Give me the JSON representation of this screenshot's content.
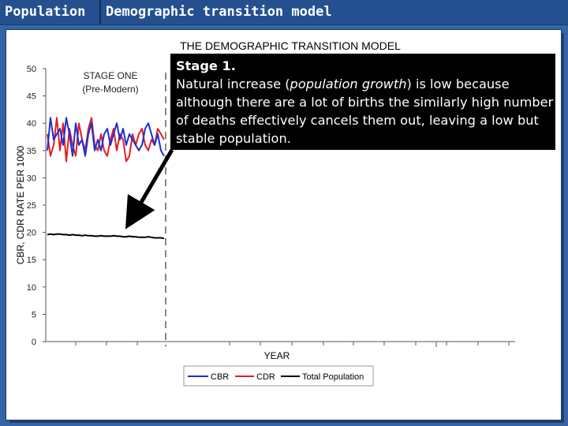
{
  "header": {
    "tab_label": "Population",
    "title": "Demographic transition model"
  },
  "colors": {
    "header_bg": "#25508f",
    "slide_bg": "#3465a4",
    "cbr": "#1c2fd6",
    "cdr": "#e02020",
    "total_population": "#000000"
  },
  "chart_data": {
    "type": "line",
    "title": "THE DEMOGRAPHIC TRANSITION MODEL",
    "xlabel": "YEAR",
    "ylabel": "CBR, CDR RATE PER 1000",
    "ylim": [
      0,
      50
    ],
    "yticks": [
      "0",
      "5",
      "10",
      "15",
      "20",
      "25",
      "30",
      "35",
      "40",
      "45",
      "50"
    ],
    "stage_label": [
      "STAGE ONE",
      "(Pre-Modern)"
    ],
    "x": [
      1,
      2,
      3,
      4,
      5,
      6,
      7,
      8,
      9,
      10,
      11,
      12,
      13,
      14,
      15,
      16,
      17,
      18,
      19,
      20,
      21,
      22,
      23,
      24,
      25,
      26,
      27,
      28,
      29,
      30,
      31,
      32,
      33,
      34,
      35,
      36,
      37,
      38
    ],
    "series": [
      {
        "name": "CBR",
        "values": [
          35,
          41,
          37,
          38,
          39,
          36,
          41,
          38,
          34,
          40,
          36,
          37,
          34,
          38,
          40,
          35,
          37,
          35,
          38,
          39,
          36,
          38,
          40,
          37,
          39,
          36,
          38,
          37,
          36,
          35,
          36,
          39,
          40,
          38,
          36,
          38,
          35,
          34
        ]
      },
      {
        "name": "CDR",
        "values": [
          38,
          34,
          36,
          41,
          35,
          40,
          33,
          39,
          36,
          34,
          40,
          37,
          35,
          39,
          41,
          36,
          35,
          38,
          35,
          34,
          37,
          39,
          35,
          38,
          37,
          33,
          34,
          38,
          36,
          38,
          39,
          36,
          35,
          37,
          36,
          39,
          38,
          37
        ]
      },
      {
        "name": "Total Population",
        "values": [
          19.6,
          19.7,
          19.6,
          19.7,
          19.7,
          19.6,
          19.6,
          19.5,
          19.6,
          19.5,
          19.5,
          19.4,
          19.5,
          19.4,
          19.4,
          19.3,
          19.3,
          19.4,
          19.3,
          19.3,
          19.3,
          19.4,
          19.3,
          19.3,
          19.2,
          19.2,
          19.3,
          19.2,
          19.2,
          19.1,
          19.1,
          19.1,
          19.2,
          19.1,
          19.0,
          19.0,
          19.0,
          18.9
        ]
      }
    ],
    "legend": [
      "CBR",
      "CDR",
      "Total Population"
    ],
    "legend_position": "bottom"
  },
  "callout": {
    "title": "Stage 1.",
    "text_before": "Natural increase (",
    "text_italic": "population growth",
    "text_after": ") is low because although there are a lot of births the similarly high number of deaths effectively cancels them out, leaving a low but stable population."
  }
}
